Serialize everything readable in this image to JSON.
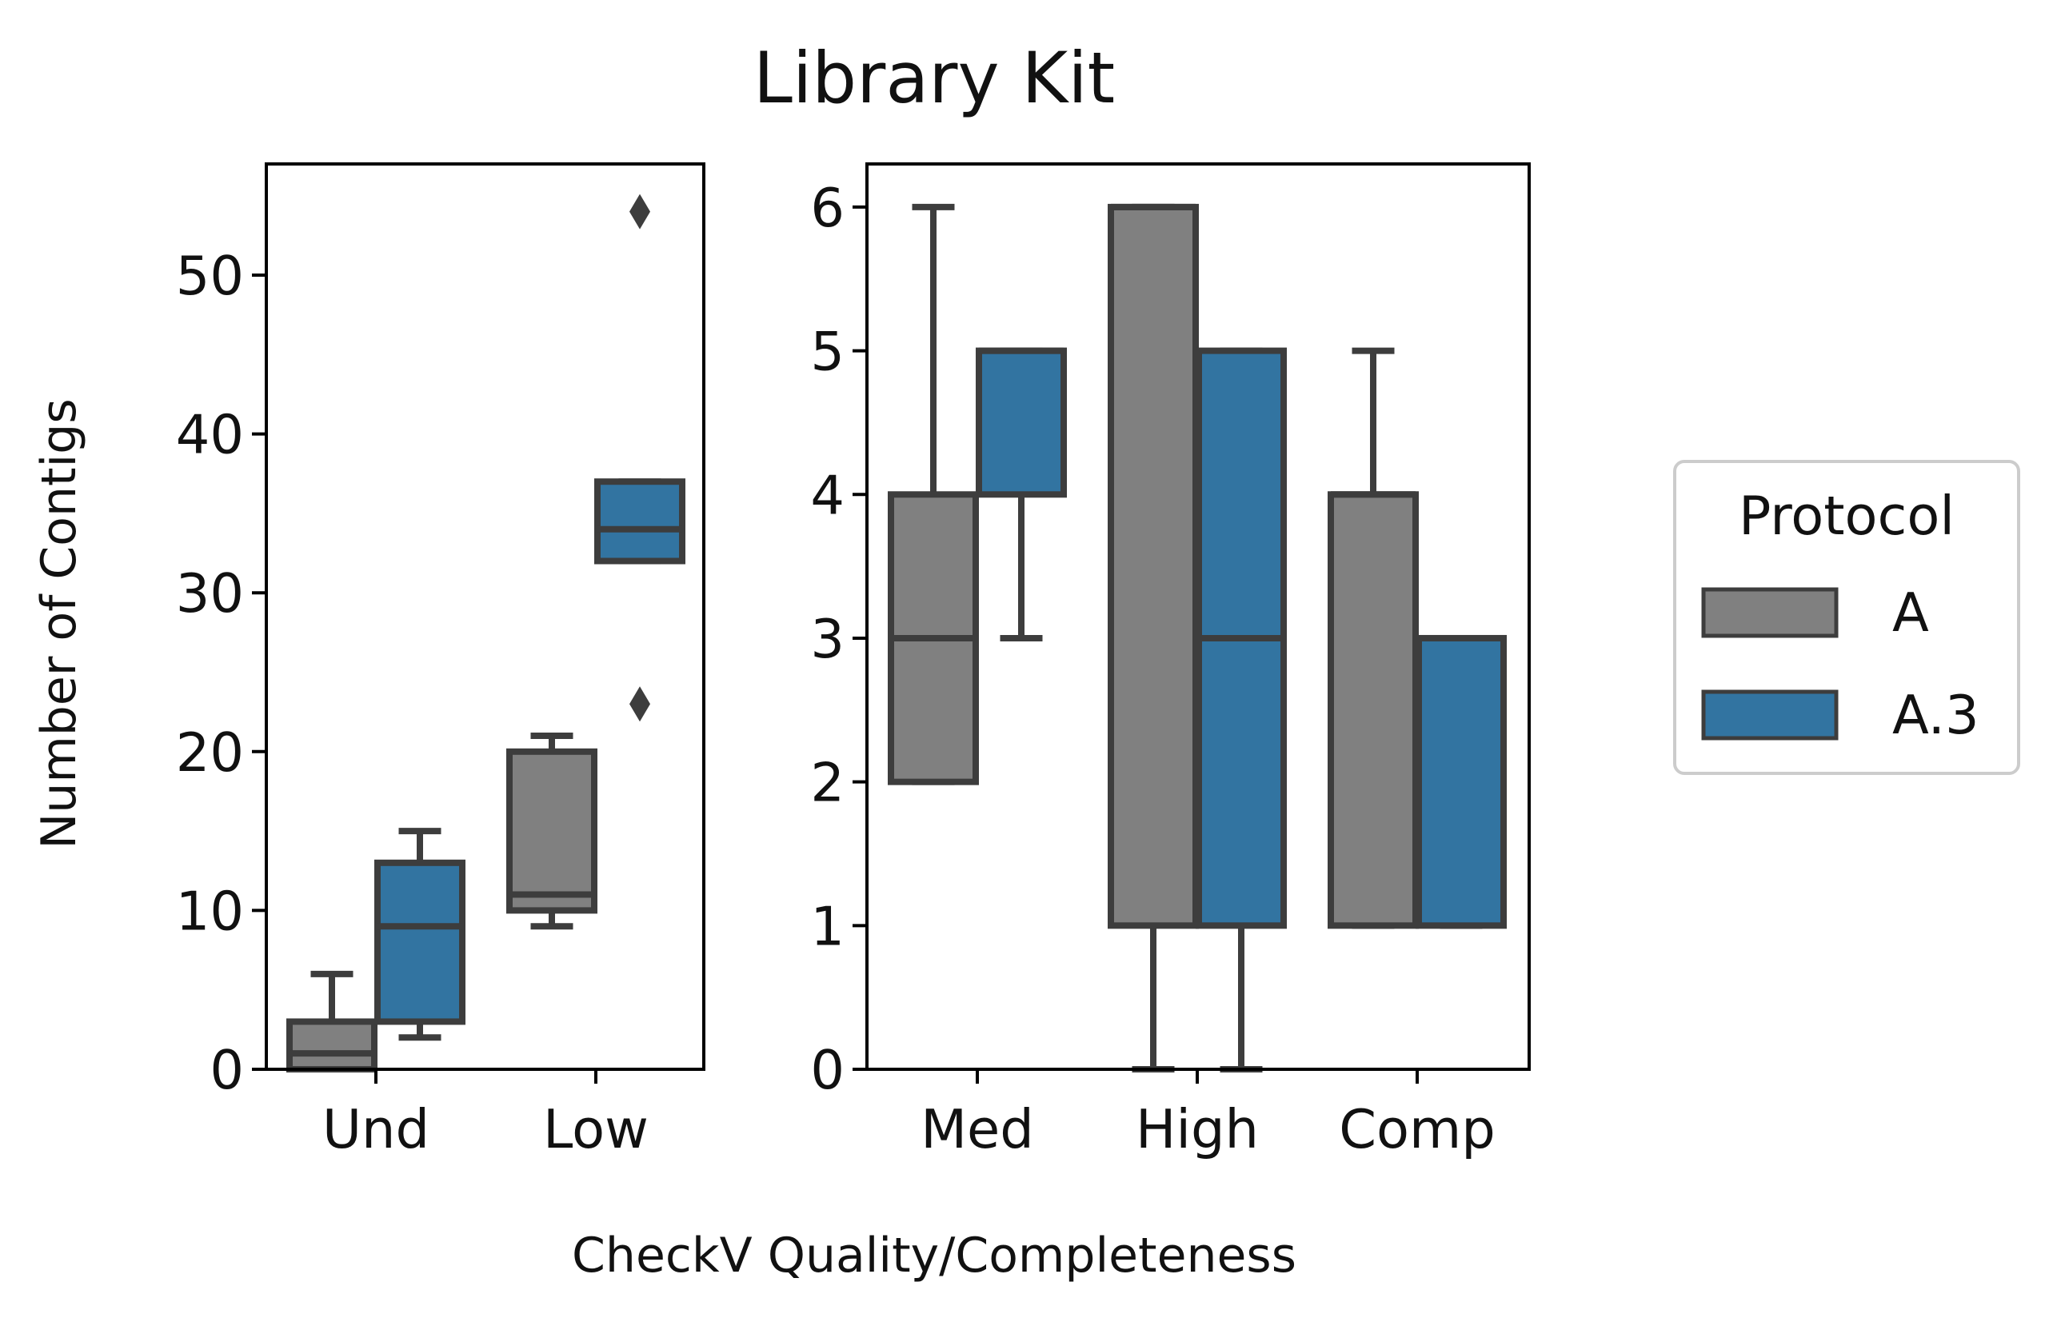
{
  "chart_data": {
    "type": "box",
    "title": "Library Kit",
    "xlabel": "CheckV Quality/Completeness",
    "ylabel": "Number of Contigs",
    "legend": {
      "title": "Protocol",
      "position": "right",
      "entries": [
        {
          "name": "A",
          "color": "#808080"
        },
        {
          "name": "A.3",
          "color": "#3274a1"
        }
      ]
    },
    "panels": [
      {
        "categories": [
          "Und",
          "Low"
        ],
        "ylim": [
          0,
          57
        ],
        "yticks": [
          0,
          10,
          20,
          30,
          40,
          50
        ],
        "boxes": [
          {
            "category": "Und",
            "series": "A",
            "whisker_low": 0,
            "q1": 0,
            "median": 1,
            "q3": 3,
            "whisker_high": 6,
            "outliers": []
          },
          {
            "category": "Und",
            "series": "A.3",
            "whisker_low": 2,
            "q1": 3,
            "median": 9,
            "q3": 13,
            "whisker_high": 15,
            "outliers": []
          },
          {
            "category": "Low",
            "series": "A",
            "whisker_low": 9,
            "q1": 10,
            "median": 11,
            "q3": 20,
            "whisker_high": 21,
            "outliers": []
          },
          {
            "category": "Low",
            "series": "A.3",
            "whisker_low": 32,
            "q1": 32,
            "median": 34,
            "q3": 37,
            "whisker_high": 37,
            "outliers": [
              23,
              54
            ]
          }
        ]
      },
      {
        "categories": [
          "Med",
          "High",
          "Comp"
        ],
        "ylim": [
          0,
          6.3
        ],
        "yticks": [
          0,
          1,
          2,
          3,
          4,
          5,
          6
        ],
        "boxes": [
          {
            "category": "Med",
            "series": "A",
            "whisker_low": 2,
            "q1": 2,
            "median": 3,
            "q3": 4,
            "whisker_high": 6,
            "outliers": []
          },
          {
            "category": "Med",
            "series": "A.3",
            "whisker_low": 3,
            "q1": 4,
            "median": 5,
            "q3": 5,
            "whisker_high": 5,
            "outliers": []
          },
          {
            "category": "High",
            "series": "A",
            "whisker_low": 0,
            "q1": 1,
            "median": 6,
            "q3": 6,
            "whisker_high": 6,
            "outliers": []
          },
          {
            "category": "High",
            "series": "A.3",
            "whisker_low": 0,
            "q1": 1,
            "median": 3,
            "q3": 5,
            "whisker_high": 5,
            "outliers": []
          },
          {
            "category": "Comp",
            "series": "A",
            "whisker_low": 1,
            "q1": 1,
            "median": 4,
            "q3": 4,
            "whisker_high": 5,
            "outliers": []
          },
          {
            "category": "Comp",
            "series": "A.3",
            "whisker_low": 1,
            "q1": 1,
            "median": 3,
            "q3": 3,
            "whisker_high": 3,
            "outliers": []
          }
        ]
      }
    ]
  }
}
